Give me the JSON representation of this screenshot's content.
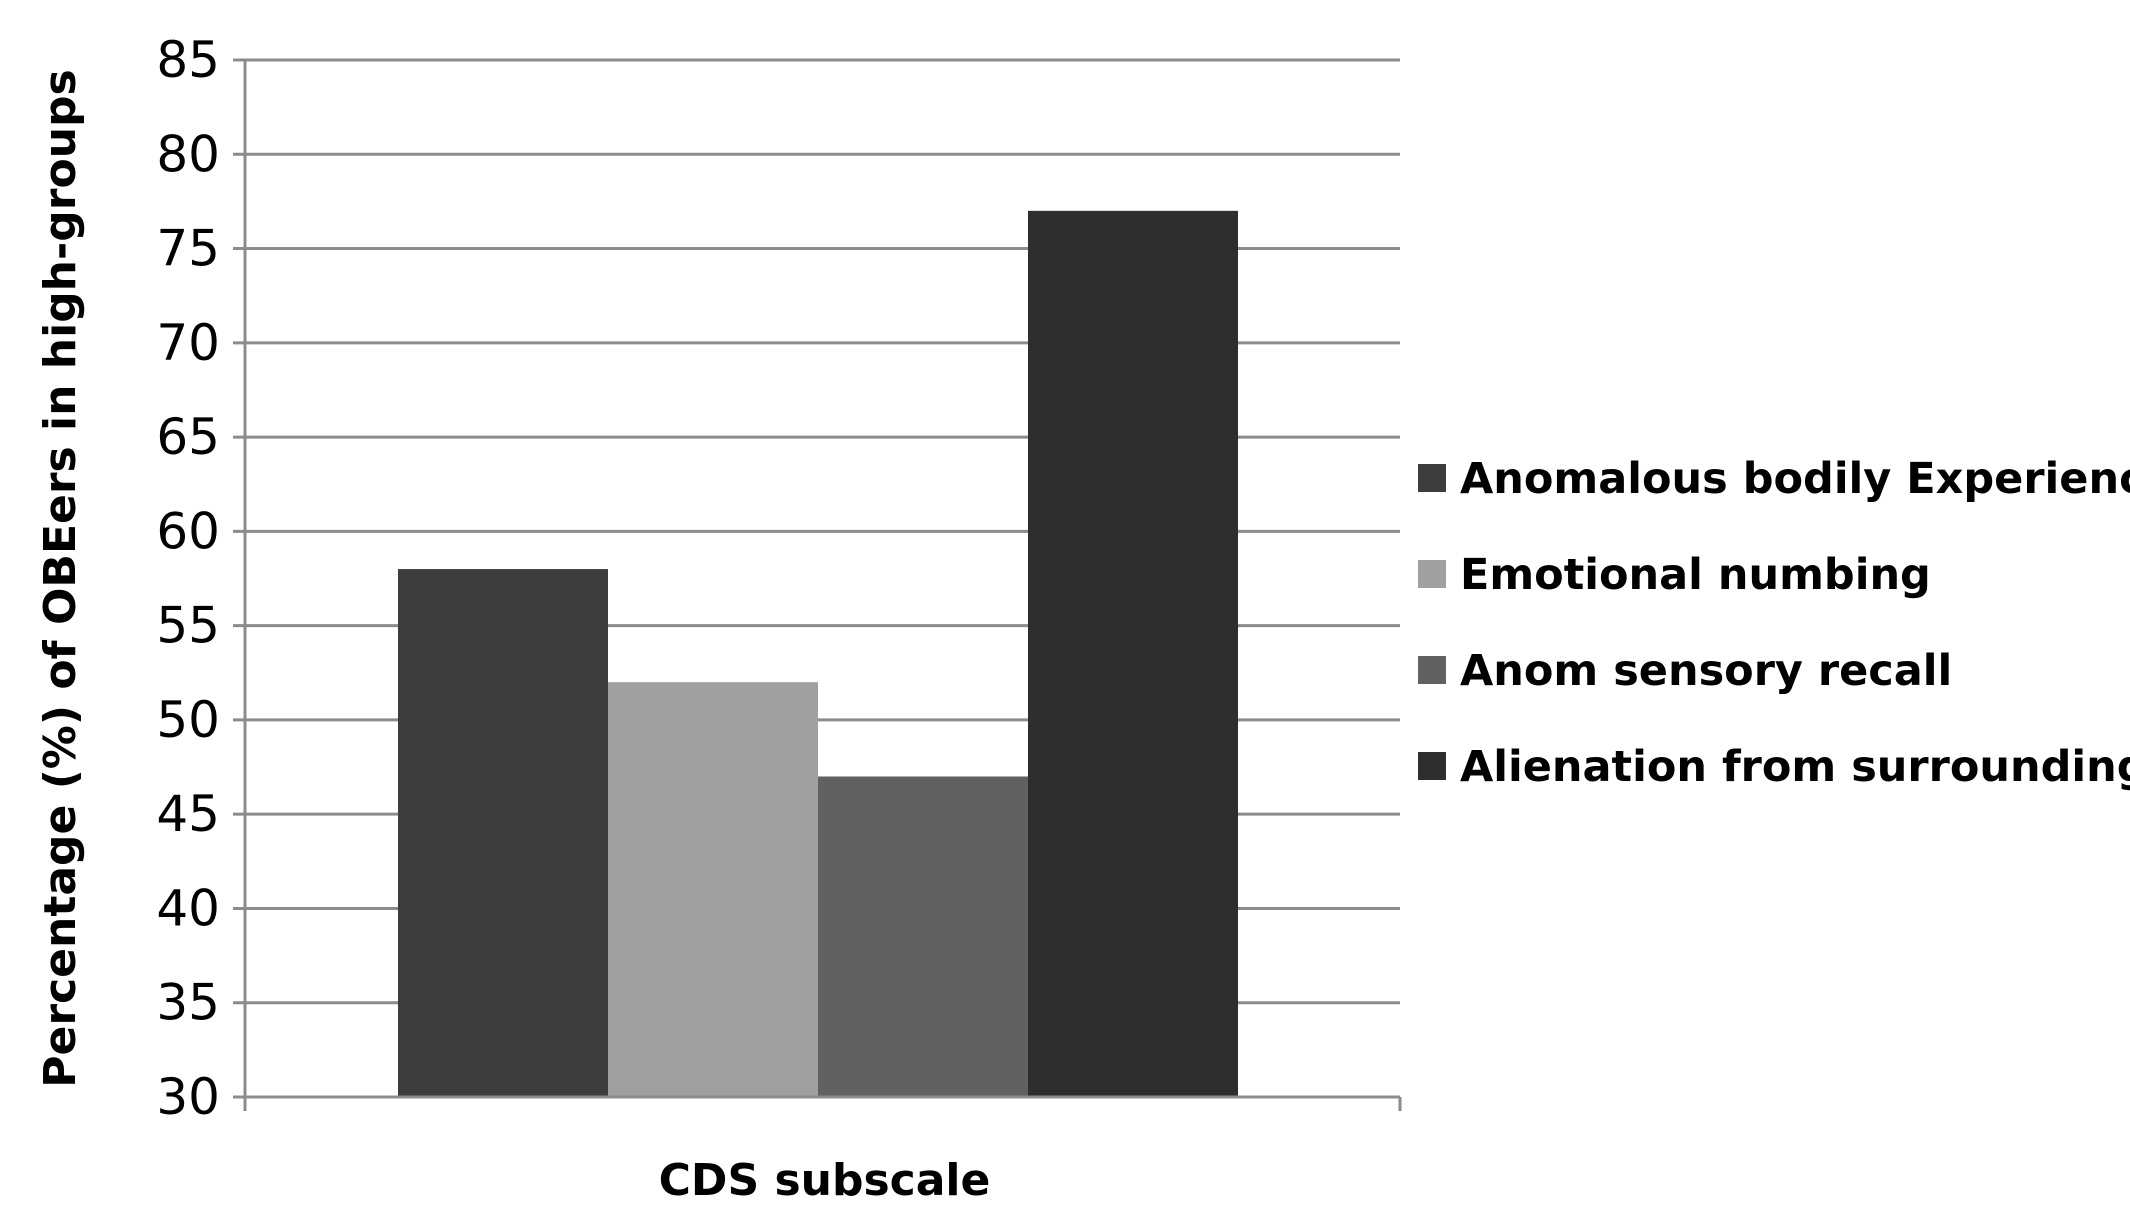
{
  "chart_data": {
    "type": "bar",
    "xlabel": "CDS subscale",
    "ylabel": "Percentage (%)  of OBEers in high-groups",
    "ylim": [
      30,
      85
    ],
    "yticks": [
      30,
      35,
      40,
      45,
      50,
      55,
      60,
      65,
      70,
      75,
      80,
      85
    ],
    "grid": true,
    "legend_position": "right",
    "series": [
      {
        "name": "Anomalous bodily Experience",
        "values": [
          58
        ],
        "color": "#3d3d3d"
      },
      {
        "name": "Emotional  numbing",
        "values": [
          52
        ],
        "color": "#a0a0a0"
      },
      {
        "name": "Anom sensory recall",
        "values": [
          47
        ],
        "color": "#616161"
      },
      {
        "name": "Alienation from surroundings",
        "values": [
          77
        ],
        "color": "#2e2e2e"
      }
    ]
  }
}
